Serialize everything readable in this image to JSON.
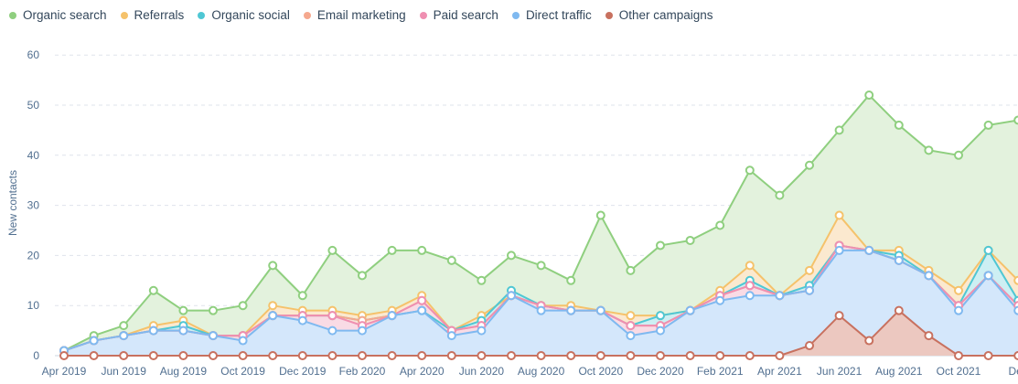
{
  "chart_data": {
    "type": "area",
    "ylabel": "New contacts",
    "ylim": [
      0,
      60
    ],
    "yticks": [
      0,
      10,
      20,
      30,
      40,
      50,
      60
    ],
    "grid": true,
    "legend_position": "top-left",
    "x": [
      "Apr 2019",
      "May 2019",
      "Jun 2019",
      "Jul 2019",
      "Aug 2019",
      "Sep 2019",
      "Oct 2019",
      "Nov 2019",
      "Dec 2019",
      "Jan 2020",
      "Feb 2020",
      "Mar 2020",
      "Apr 2020",
      "May 2020",
      "Jun 2020",
      "Jul 2020",
      "Aug 2020",
      "Sep 2020",
      "Oct 2020",
      "Nov 2020",
      "Dec 2020",
      "Jan 2021",
      "Feb 2021",
      "Mar 2021",
      "Apr 2021",
      "May 2021",
      "Jun 2021",
      "Jul 2021",
      "Aug 2021",
      "Sep 2021",
      "Oct 2021",
      "Nov 2021",
      "Dec 2021"
    ],
    "x_tick_labels": [
      "Apr 2019",
      "Jun 2019",
      "Aug 2019",
      "Oct 2019",
      "Dec 2019",
      "Feb 2020",
      "Apr 2020",
      "Jun 2020",
      "Aug 2020",
      "Oct 2020",
      "Dec 2020",
      "Feb 2021",
      "Apr 2021",
      "Jun 2021",
      "Aug 2021",
      "Oct 2021",
      "Dec"
    ],
    "series": [
      {
        "name": "Organic search",
        "color": "#8fcf7f",
        "fill": "#e3f2dd",
        "values": [
          1,
          4,
          6,
          13,
          9,
          9,
          10,
          18,
          12,
          21,
          16,
          21,
          21,
          19,
          15,
          20,
          18,
          15,
          28,
          17,
          22,
          23,
          26,
          37,
          32,
          38,
          45,
          52,
          46,
          41,
          40,
          46,
          47
        ]
      },
      {
        "name": "Referrals",
        "color": "#f5c26b",
        "fill": "#fbe9cf",
        "values": [
          1,
          3,
          4,
          6,
          7,
          4,
          4,
          10,
          9,
          9,
          8,
          9,
          12,
          5,
          8,
          12,
          10,
          10,
          9,
          8,
          8,
          9,
          13,
          18,
          12,
          17,
          28,
          21,
          21,
          17,
          13,
          21,
          15
        ]
      },
      {
        "name": "Organic social",
        "color": "#4fc7d4",
        "fill": "#cdeff3",
        "values": [
          1,
          3,
          4,
          5,
          6,
          4,
          4,
          8,
          8,
          8,
          7,
          8,
          9,
          5,
          7,
          13,
          10,
          9,
          9,
          6,
          8,
          9,
          12,
          15,
          12,
          14,
          22,
          21,
          20,
          16,
          10,
          21,
          11
        ]
      },
      {
        "name": "Email marketing",
        "color": "#f5a88e",
        "fill": "#fbe1d7",
        "values": [
          1,
          3,
          4,
          5,
          5,
          4,
          4,
          8,
          8,
          8,
          7,
          8,
          11,
          5,
          6,
          12,
          10,
          9,
          9,
          6,
          6,
          9,
          12,
          14,
          12,
          13,
          22,
          21,
          19,
          16,
          10,
          16,
          10
        ]
      },
      {
        "name": "Paid search",
        "color": "#ef8fb1",
        "fill": "#f9dbe5",
        "values": [
          1,
          3,
          4,
          5,
          5,
          4,
          4,
          8,
          8,
          8,
          6,
          8,
          11,
          5,
          6,
          12,
          10,
          9,
          9,
          6,
          6,
          9,
          12,
          14,
          12,
          13,
          22,
          21,
          19,
          16,
          10,
          16,
          10
        ]
      },
      {
        "name": "Direct traffic",
        "color": "#7fb9f0",
        "fill": "#d4e7fb",
        "values": [
          1,
          3,
          4,
          5,
          5,
          4,
          3,
          8,
          7,
          5,
          5,
          8,
          9,
          4,
          5,
          12,
          9,
          9,
          9,
          4,
          5,
          9,
          11,
          12,
          12,
          13,
          21,
          21,
          19,
          16,
          9,
          16,
          9
        ]
      },
      {
        "name": "Other campaigns",
        "color": "#c8715f",
        "fill": "#ecc8c0",
        "values": [
          0,
          0,
          0,
          0,
          0,
          0,
          0,
          0,
          0,
          0,
          0,
          0,
          0,
          0,
          0,
          0,
          0,
          0,
          0,
          0,
          0,
          0,
          0,
          0,
          0,
          2,
          8,
          3,
          9,
          4,
          0,
          0,
          0
        ]
      }
    ]
  }
}
